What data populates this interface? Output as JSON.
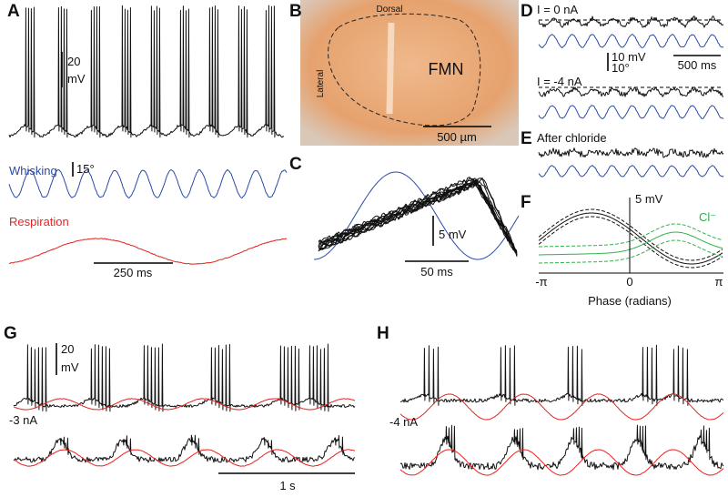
{
  "panels": {
    "a": {
      "label": "A",
      "voltage_scale": "20",
      "voltage_unit": "mV",
      "whisking": "Whisking",
      "angle_scale": "15°",
      "respiration": "Respiration",
      "time_scale": "250 ms"
    },
    "b": {
      "label": "B",
      "dorsal": "Dorsal",
      "lateral": "Lateral",
      "nucleus": "FMN",
      "length_scale": "500 µm"
    },
    "c": {
      "label": "C",
      "voltage_scale": "5 mV",
      "time_scale": "50 ms"
    },
    "d": {
      "label": "D",
      "condition_1": "I = 0 nA",
      "voltage_scale": "10 mV",
      "angle_scale": "10°",
      "time_scale": "500 ms",
      "condition_2": "I = -4 nA"
    },
    "e": {
      "label": "E",
      "condition": "After chloride"
    },
    "f": {
      "label": "F",
      "voltage_scale": "5 mV",
      "chloride": "Cl⁻",
      "x_ticks": [
        "-π",
        "0",
        "π"
      ],
      "x_label": "Phase (radians)"
    },
    "g": {
      "label": "G",
      "voltage_scale": "20",
      "voltage_unit": "mV",
      "current": "-3 nA",
      "time_scale": "1 s"
    },
    "h": {
      "label": "H",
      "current": "-4 nA"
    }
  }
}
